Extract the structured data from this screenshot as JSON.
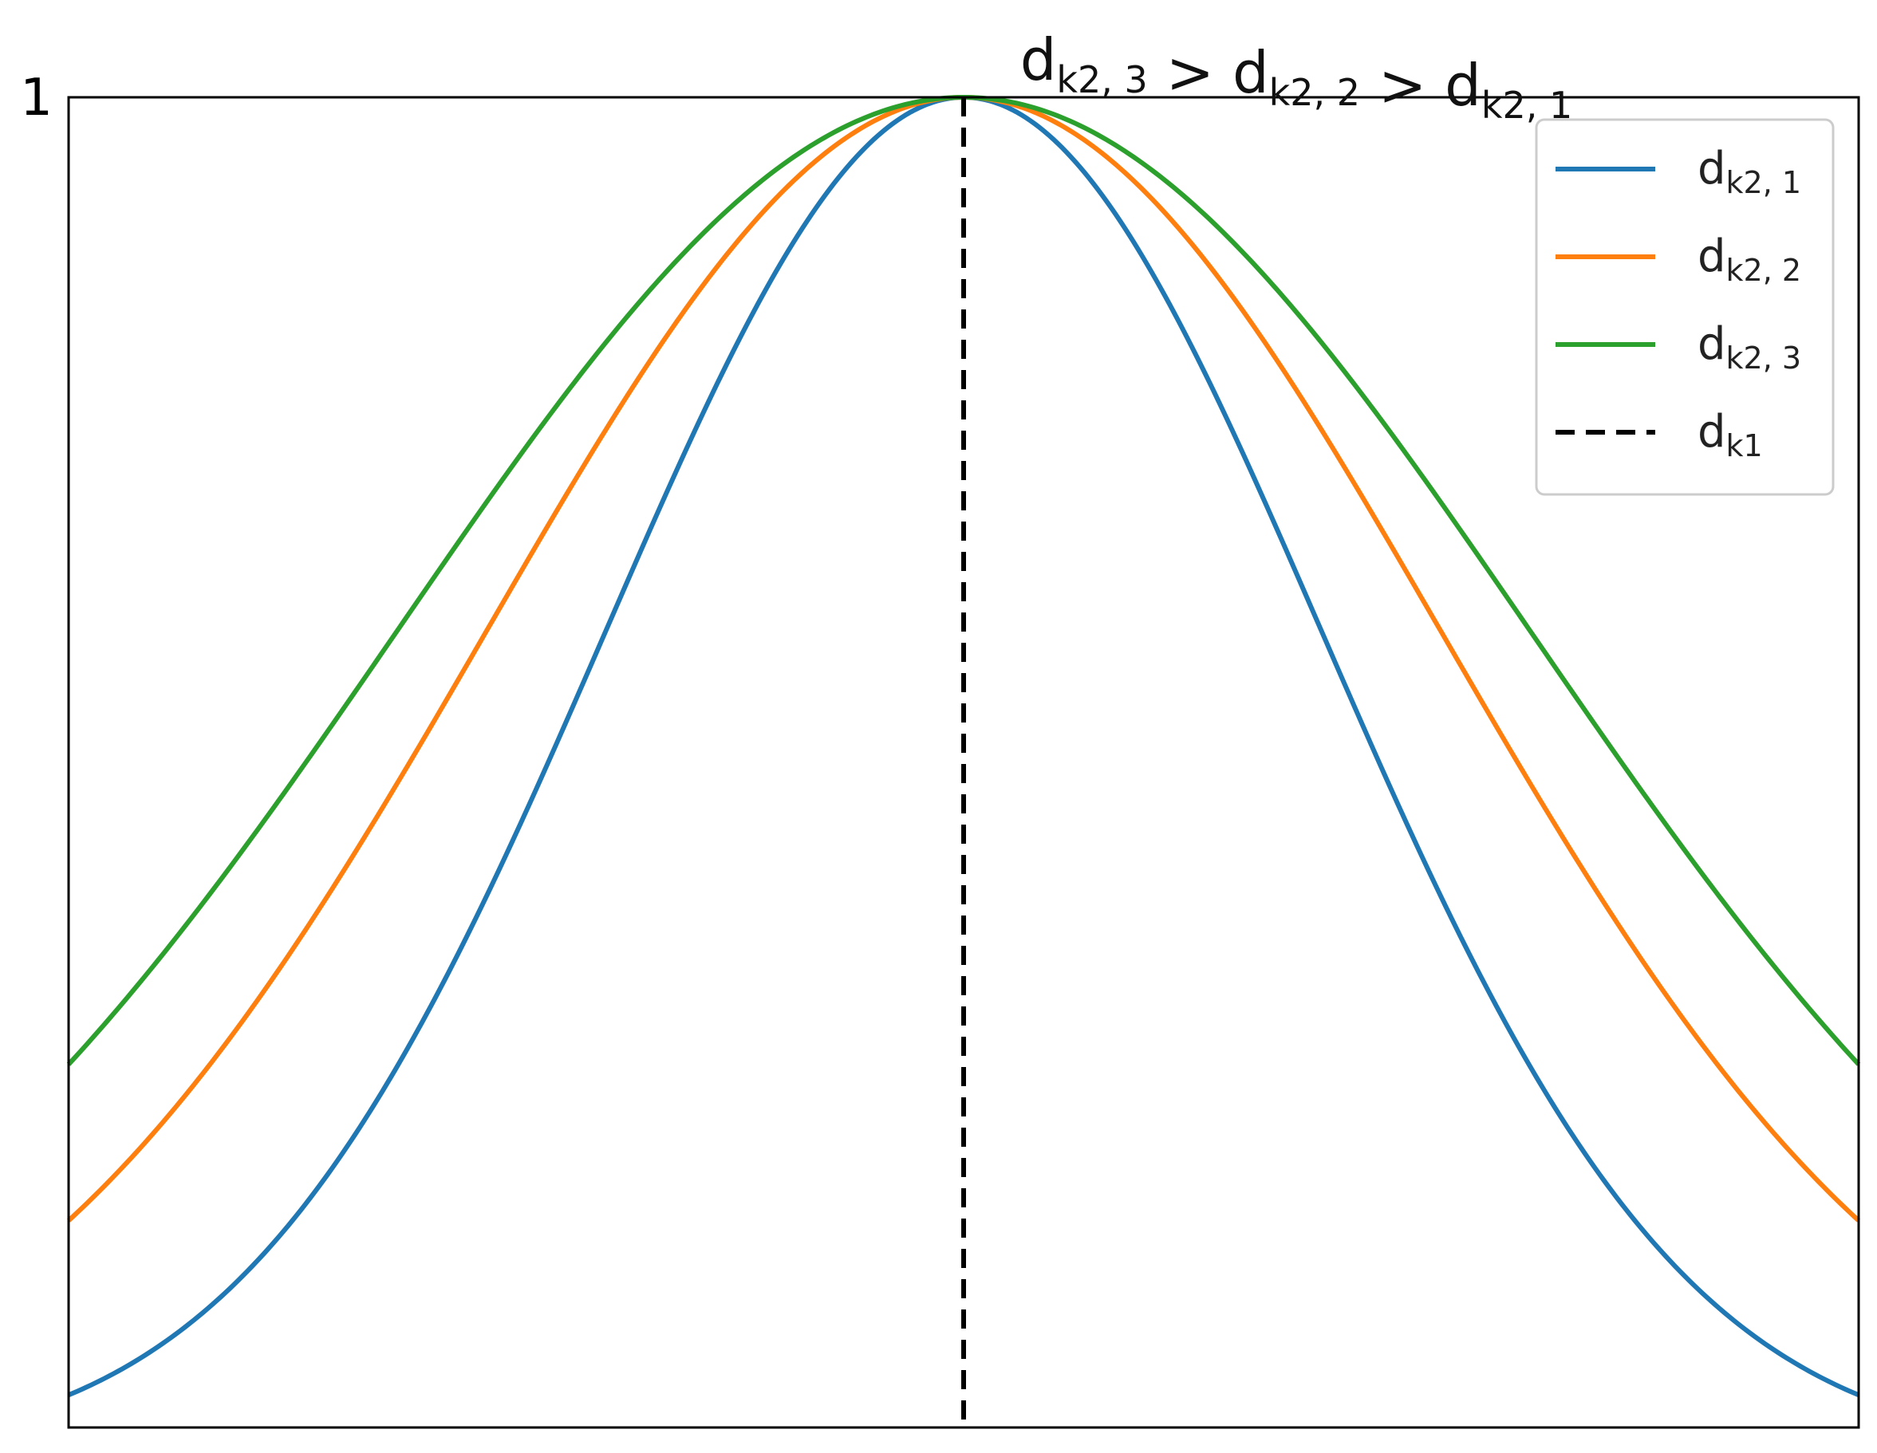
{
  "chart_data": {
    "type": "line",
    "title_parts": [
      {
        "base": "d",
        "sub": "k2, 3"
      },
      {
        "op": " > "
      },
      {
        "base": "d",
        "sub": "k2, 2"
      },
      {
        "op": " > "
      },
      {
        "base": "d",
        "sub": "k2, 1"
      }
    ],
    "xlim": [
      -3,
      3
    ],
    "ylim": [
      0.02,
      1
    ],
    "y_ticks": [
      {
        "value": 1,
        "label": "1"
      }
    ],
    "grid": false,
    "legend_position": "top-right",
    "series": [
      {
        "name_base": "d",
        "name_sub": "k2, 1",
        "color": "#1f77b4",
        "style": "solid",
        "sigma": 1.2,
        "mean": 0
      },
      {
        "name_base": "d",
        "name_sub": "k2, 2",
        "color": "#ff7f0e",
        "style": "solid",
        "sigma": 1.6,
        "mean": 0
      },
      {
        "name_base": "d",
        "name_sub": "k2, 3",
        "color": "#2ca02c",
        "style": "solid",
        "sigma": 1.9,
        "mean": 0
      }
    ],
    "reference_line": {
      "name_base": "d",
      "name_sub": "k1",
      "x": 0,
      "color": "#000000",
      "style": "dashed"
    }
  }
}
